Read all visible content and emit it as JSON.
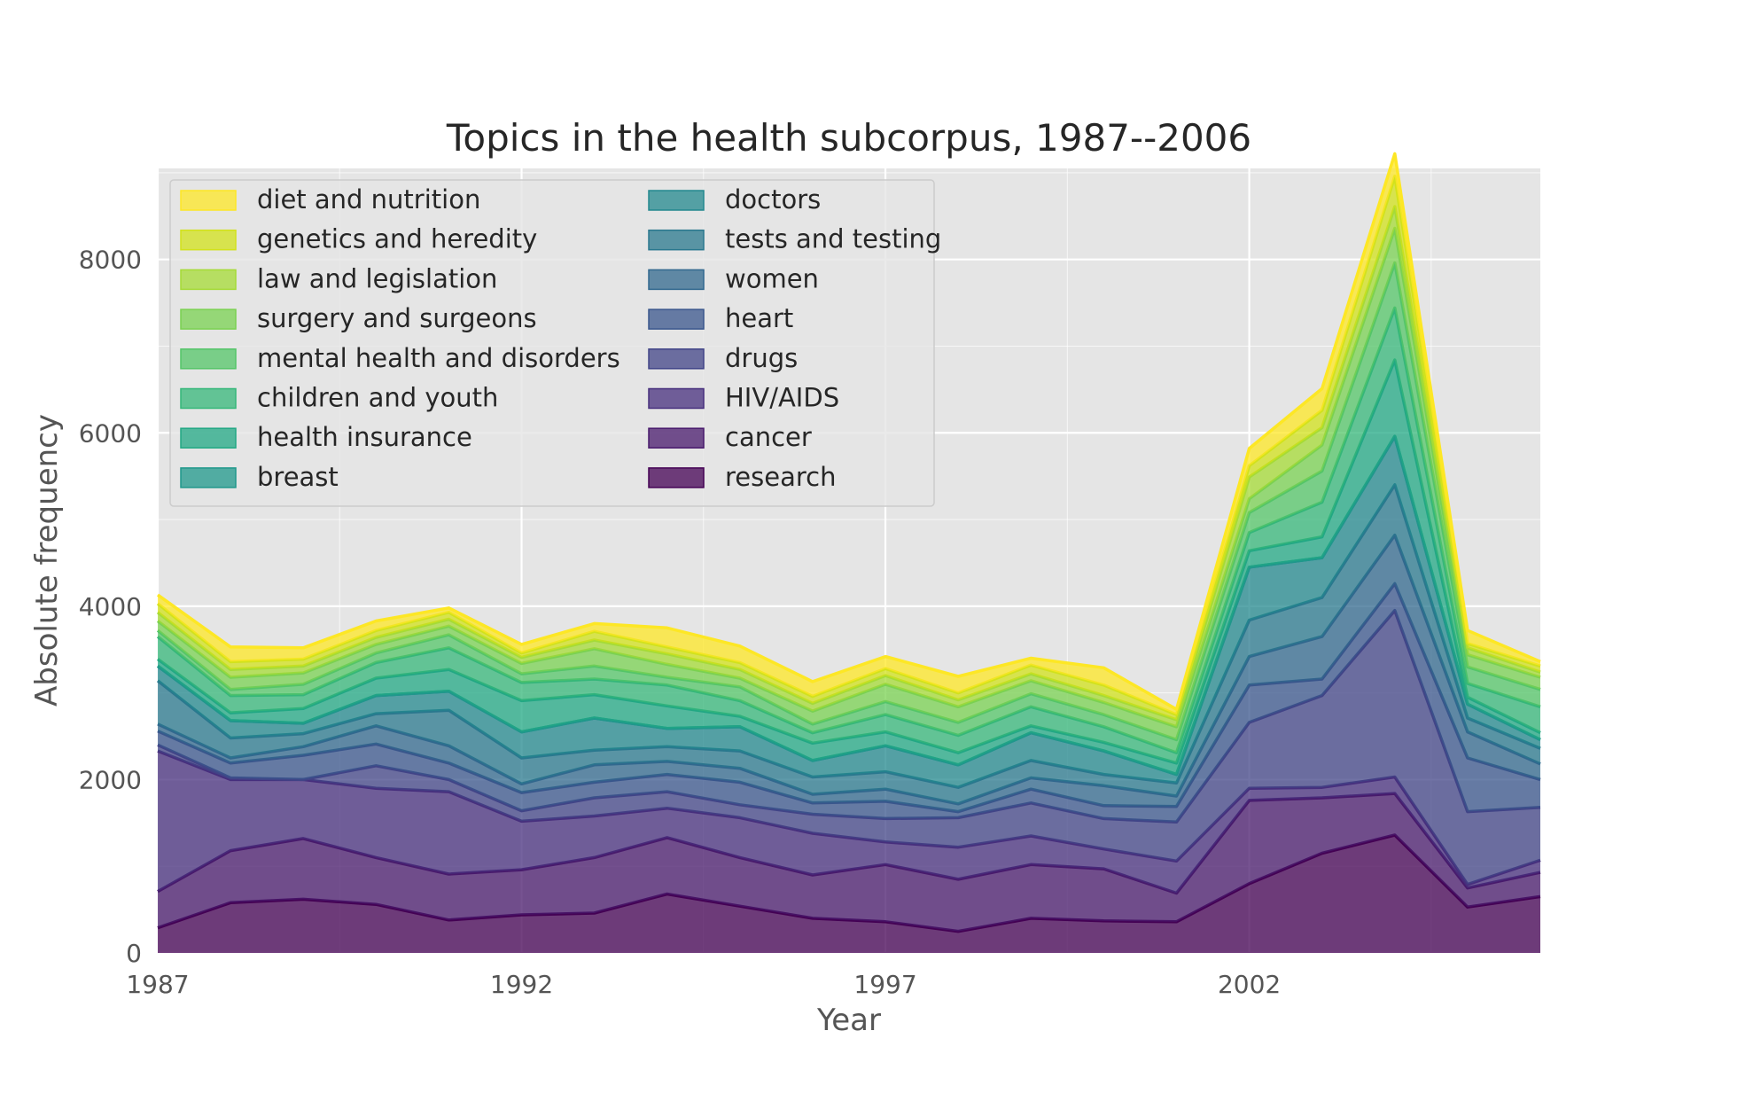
{
  "chart_data": {
    "type": "area",
    "stacked": true,
    "title": "Topics in the health subcorpus, 1987--2006",
    "xlabel": "Year",
    "ylabel": "Absolute frequency",
    "x": [
      1987,
      1988,
      1989,
      1990,
      1991,
      1992,
      1993,
      1994,
      1995,
      1996,
      1997,
      1998,
      1999,
      2000,
      2001,
      2002,
      2003,
      2004,
      2005,
      2006
    ],
    "xlim": [
      1987,
      2006
    ],
    "ylim": [
      0,
      9050
    ],
    "xticks": [
      1987,
      1992,
      1997,
      2002
    ],
    "yticks": [
      0,
      2000,
      4000,
      6000,
      8000
    ],
    "x_tick_labels": [
      "1987",
      "1992",
      "1997",
      "2002"
    ],
    "y_tick_labels": [
      "0",
      "2000",
      "4000",
      "6000",
      "8000"
    ],
    "grid": true,
    "legend_position": "top-left",
    "legend_columns": 2,
    "series": [
      {
        "name": "research",
        "color": "#440154",
        "values": [
          290,
          580,
          620,
          560,
          380,
          440,
          460,
          680,
          540,
          400,
          360,
          250,
          400,
          370,
          360,
          800,
          1150,
          1360,
          530,
          650
        ]
      },
      {
        "name": "cancer",
        "color": "#481a6c",
        "values": [
          420,
          600,
          700,
          540,
          530,
          520,
          640,
          650,
          560,
          500,
          660,
          600,
          620,
          600,
          330,
          960,
          640,
          480,
          220,
          280
        ]
      },
      {
        "name": "HIV/AIDS",
        "color": "#472f7d",
        "values": [
          1620,
          820,
          680,
          800,
          950,
          560,
          480,
          340,
          460,
          480,
          260,
          370,
          330,
          230,
          370,
          140,
          120,
          190,
          40,
          140
        ]
      },
      {
        "name": "drugs",
        "color": "#414487",
        "values": [
          70,
          20,
          0,
          260,
          140,
          120,
          210,
          190,
          150,
          220,
          270,
          340,
          380,
          350,
          450,
          760,
          1060,
          1920,
          840,
          610
        ]
      },
      {
        "name": "heart",
        "color": "#39568c",
        "values": [
          160,
          170,
          280,
          250,
          190,
          210,
          180,
          200,
          260,
          130,
          200,
          70,
          160,
          150,
          180,
          430,
          190,
          310,
          620,
          320
        ]
      },
      {
        "name": "women",
        "color": "#31688e",
        "values": [
          80,
          60,
          100,
          210,
          200,
          100,
          200,
          150,
          160,
          100,
          140,
          90,
          130,
          230,
          120,
          330,
          490,
          560,
          300,
          180
        ]
      },
      {
        "name": "tests and testing",
        "color": "#2a788e",
        "values": [
          500,
          230,
          150,
          140,
          410,
          300,
          170,
          170,
          200,
          200,
          200,
          190,
          200,
          130,
          150,
          420,
          450,
          580,
          160,
          180
        ]
      },
      {
        "name": "doctors",
        "color": "#23888e",
        "values": [
          170,
          200,
          120,
          210,
          220,
          300,
          370,
          210,
          280,
          190,
          300,
          260,
          320,
          270,
          100,
          610,
          460,
          560,
          160,
          100
        ]
      },
      {
        "name": "breast",
        "color": "#1f988b",
        "values": [
          0,
          0,
          0,
          0,
          0,
          0,
          0,
          0,
          0,
          0,
          0,
          0,
          0,
          0,
          0,
          0,
          0,
          0,
          0,
          0
        ]
      },
      {
        "name": "health insurance",
        "color": "#22a884",
        "values": [
          80,
          90,
          170,
          200,
          250,
          360,
          270,
          260,
          120,
          200,
          160,
          140,
          80,
          100,
          130,
          190,
          240,
          880,
          80,
          80
        ]
      },
      {
        "name": "children and youth",
        "color": "#35b779",
        "values": [
          260,
          200,
          160,
          180,
          250,
          210,
          180,
          240,
          180,
          120,
          200,
          200,
          220,
          180,
          120,
          210,
          400,
          600,
          160,
          300
        ]
      },
      {
        "name": "mental health and disorders",
        "color": "#54c568",
        "values": [
          70,
          70,
          120,
          110,
          150,
          100,
          150,
          90,
          160,
          100,
          150,
          150,
          150,
          140,
          150,
          230,
          360,
          520,
          190,
          200
        ]
      },
      {
        "name": "surgery and surgeons",
        "color": "#7ad151",
        "values": [
          110,
          140,
          130,
          100,
          100,
          120,
          200,
          150,
          100,
          150,
          200,
          180,
          150,
          140,
          150,
          160,
          300,
          400,
          140,
          140
        ]
      },
      {
        "name": "law and legislation",
        "color": "#a5db36",
        "values": [
          100,
          90,
          80,
          80,
          80,
          70,
          100,
          120,
          100,
          90,
          100,
          80,
          80,
          80,
          80,
          250,
          200,
          250,
          80,
          60
        ]
      },
      {
        "name": "genetics and heredity",
        "color": "#d2e21b",
        "values": [
          100,
          90,
          80,
          80,
          80,
          50,
          100,
          80,
          80,
          80,
          80,
          80,
          100,
          120,
          60,
          130,
          200,
          350,
          50,
          70
        ]
      },
      {
        "name": "diet and nutrition",
        "color": "#fde725",
        "values": [
          100,
          170,
          130,
          110,
          50,
          100,
          90,
          220,
          190,
          170,
          140,
          190,
          80,
          200,
          60,
          200,
          250,
          260,
          150,
          50
        ]
      }
    ]
  }
}
